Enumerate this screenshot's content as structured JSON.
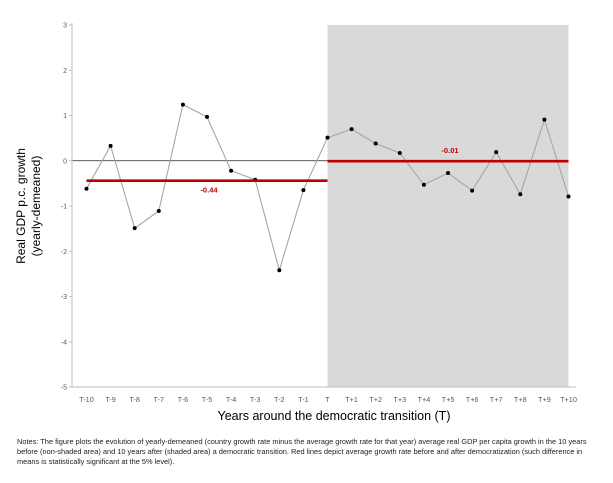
{
  "chart_data": {
    "type": "line",
    "title": "",
    "xlabel": "Years around the democratic transition (T)",
    "ylabel_lines": [
      "Real GDP p.c. growth",
      "(yearly-demeaned)"
    ],
    "categories": [
      "T-10",
      "T-9",
      "T-8",
      "T-7",
      "T-6",
      "T-5",
      "T-4",
      "T-3",
      "T-2",
      "T-1",
      "T",
      "T+1",
      "T+2",
      "T+3",
      "T+4",
      "T+5",
      "T+6",
      "T+7",
      "T+8",
      "T+9",
      "T+10"
    ],
    "series": [
      {
        "values": [
          -0.62,
          0.33,
          -1.49,
          -1.11,
          1.24,
          0.97,
          -0.22,
          -0.42,
          -2.42,
          -0.65,
          0.51,
          0.7,
          0.38,
          0.17,
          -0.53,
          -0.27,
          -0.66,
          0.19,
          -0.74,
          0.91,
          -0.79
        ],
        "color": "#a6a6a6",
        "marker_color": "#000000"
      }
    ],
    "ylim": [
      -5,
      3
    ],
    "yticks": [
      "3",
      "2",
      "1",
      "0",
      "-1",
      "-2",
      "-3",
      "-4",
      "-5"
    ],
    "ytick_values": [
      3,
      2,
      1,
      0,
      -1,
      -2,
      -3,
      -4,
      -5
    ],
    "shaded_region": {
      "from": "T",
      "to": "T+10",
      "color": "#d9d9d9"
    },
    "mean_lines": [
      {
        "from": "T-10",
        "to": "T",
        "value": -0.44,
        "label": "-0.44",
        "color": "#c00000"
      },
      {
        "from": "T",
        "to": "T+10",
        "value": -0.01,
        "label": "-0.01",
        "color": "#c00000"
      }
    ],
    "zero_line": true,
    "grid": false
  },
  "notes": "Notes: The figure plots the evolution of yearly-demeaned (country growth rate minus the average growth rate for that year) average real GDP per capita growth in the 10 years before (non-shaded area) and 10 years after (shaded area) a democratic transition. Red lines depict average growth rate before and after democratization (such difference in means is statistically significant at the 5% level)."
}
